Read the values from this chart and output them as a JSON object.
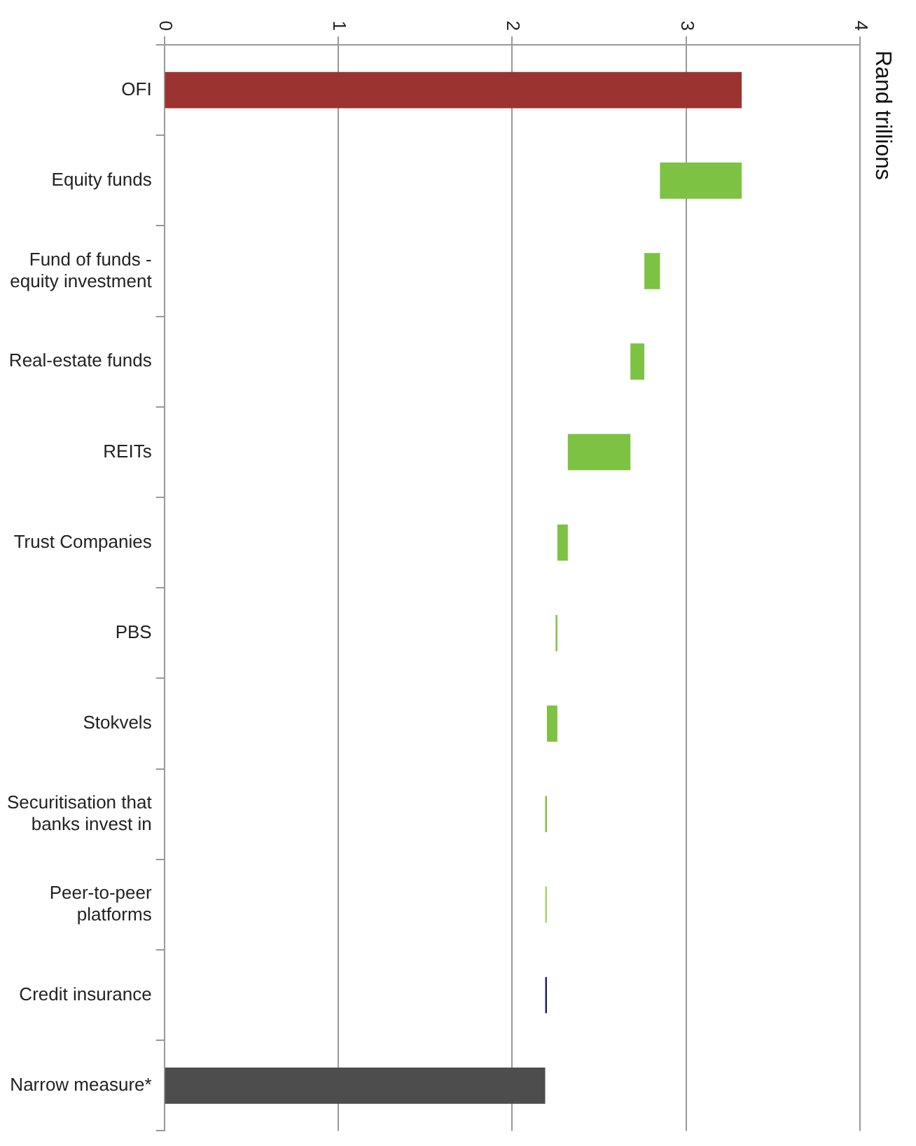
{
  "chart_data": {
    "type": "bar",
    "orientation": "horizontal",
    "annotations": [
      "Rand trillions"
    ],
    "categories": [
      "OFI",
      "Equity funds",
      "Fund of funds - equity investment",
      "Real-estate funds",
      "REITs",
      "Trust Companies",
      "PBS",
      "Stokvels",
      "Securitisation that banks invest in",
      "Peer-to-peer platforms",
      "Credit insurance",
      "Narrow measure*"
    ],
    "base": [
      0,
      2.85,
      2.76,
      2.68,
      2.32,
      2.26,
      2.25,
      2.2,
      2.19,
      2.19,
      2.19,
      0
    ],
    "values": [
      3.32,
      0.47,
      0.09,
      0.08,
      0.36,
      0.06,
      0.01,
      0.06,
      0.01,
      0.01,
      0.01,
      2.19
    ],
    "colors": [
      "#9b3330",
      "#7dc242",
      "#7dc242",
      "#7dc242",
      "#7dc242",
      "#7dc242",
      "#7dc242",
      "#7dc242",
      "#7dc242",
      "#a6d46a",
      "#1f1f6b",
      "#4d4d4d"
    ],
    "xlim": [
      0,
      4
    ],
    "xticks": [
      0,
      1,
      2,
      3,
      4
    ],
    "grid": "x"
  }
}
